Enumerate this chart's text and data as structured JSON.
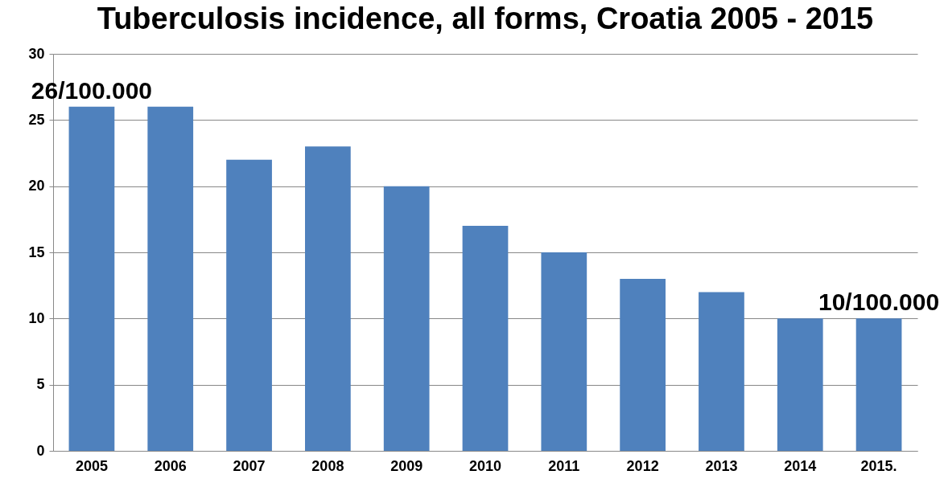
{
  "chart_data": {
    "type": "bar",
    "title": "Tuberculosis incidence, all forms, Croatia 2005 - 2015",
    "categories": [
      "2005",
      "2006",
      "2007",
      "2008",
      "2009",
      "2010",
      "2011",
      "2012",
      "2013",
      "2014",
      "2015."
    ],
    "values": [
      26,
      26,
      22,
      23,
      20,
      17,
      15,
      13,
      12,
      10,
      10
    ],
    "color": "#4f81bd",
    "ylim": [
      0,
      30
    ],
    "yticks": [
      0,
      5,
      10,
      15,
      20,
      25,
      30
    ],
    "grid": "y",
    "annotations": [
      {
        "text": "26/100.000",
        "x": "2005",
        "y": 26
      },
      {
        "text": "10/100.000",
        "x": "2015.",
        "y": 10
      }
    ]
  }
}
